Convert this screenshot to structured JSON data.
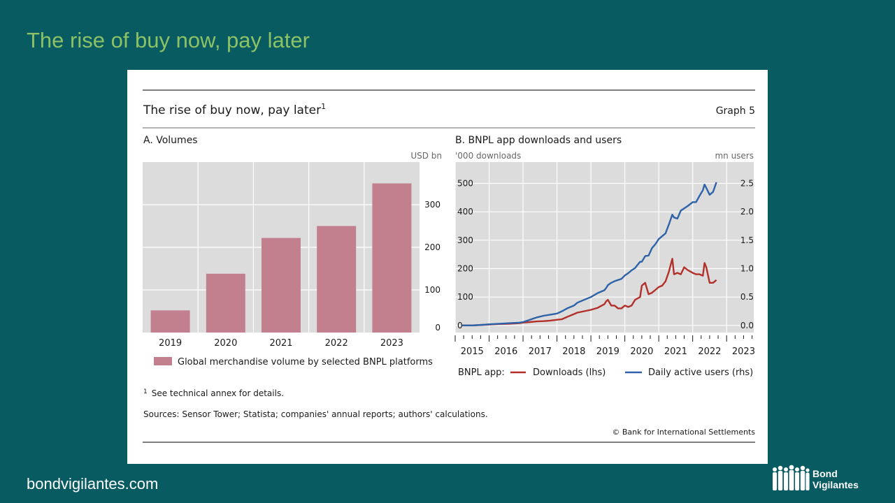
{
  "slide": {
    "title": "The rise of buy now, pay later",
    "footer_url": "bondvigilantes.com",
    "brand": {
      "line1": "Bond",
      "line2": "Vigilantes"
    }
  },
  "figure": {
    "title": "The rise of buy now, pay later",
    "title_superscript": "1",
    "graph_label": "Graph 5",
    "footnote_marker": "1",
    "footnote": "See technical annex for details.",
    "sources": "Sources: Sensor Tower; Statista; companies' annual reports; authors' calculations.",
    "copyright": "© Bank for International Settlements"
  },
  "chart_data": [
    {
      "type": "bar",
      "panel_title": "A. Volumes",
      "unit_label": "USD bn",
      "categories": [
        "2019",
        "2020",
        "2021",
        "2022",
        "2023"
      ],
      "series": [
        {
          "name": "Global merchandise volume by selected BNPL platforms",
          "values": [
            52,
            138,
            222,
            250,
            350
          ],
          "color": "#c2808f"
        }
      ],
      "ylim": [
        0,
        400
      ],
      "yticks": [
        "0",
        "100",
        "200",
        "300"
      ],
      "axis_side": "right",
      "grid": true,
      "legend_position": "bottom"
    },
    {
      "type": "line",
      "panel_title": "B. BNPL app downloads and users",
      "left_unit_label": "'000 downloads",
      "right_unit_label": "mn users",
      "xlim": [
        2015,
        2023.8
      ],
      "xticks": [
        "2015",
        "2016",
        "2017",
        "2018",
        "2019",
        "2020",
        "2021",
        "2022",
        "2023"
      ],
      "y_left_lim": [
        -25,
        575
      ],
      "y_left_ticks": [
        "0",
        "100",
        "200",
        "300",
        "400",
        "500"
      ],
      "y_right_lim": [
        -0.125,
        2.875
      ],
      "y_right_ticks": [
        "0.0",
        "0.5",
        "1.0",
        "1.5",
        "2.0",
        "2.5"
      ],
      "legend_prefix": "BNPL app:",
      "grid": true,
      "legend_position": "bottom",
      "series": [
        {
          "name": "Downloads (lhs)",
          "axis": "left",
          "color": "#b22f2a",
          "x": [
            2015.2,
            2015.5,
            2015.8,
            2016.0,
            2016.3,
            2016.6,
            2016.9,
            2017.0,
            2017.2,
            2017.4,
            2017.6,
            2017.8,
            2018.0,
            2018.15,
            2018.3,
            2018.5,
            2018.6,
            2018.8,
            2019.0,
            2019.2,
            2019.4,
            2019.45,
            2019.5,
            2019.6,
            2019.7,
            2019.8,
            2019.9,
            2020.0,
            2020.1,
            2020.2,
            2020.3,
            2020.45,
            2020.5,
            2020.6,
            2020.7,
            2020.8,
            2020.9,
            2021.0,
            2021.1,
            2021.2,
            2021.3,
            2021.4,
            2021.45,
            2021.55,
            2021.65,
            2021.75,
            2021.85,
            2022.0,
            2022.1,
            2022.2,
            2022.3,
            2022.35,
            2022.4,
            2022.5,
            2022.6,
            2022.7
          ],
          "y": [
            0,
            0,
            2,
            3,
            5,
            6,
            8,
            10,
            12,
            14,
            15,
            17,
            20,
            22,
            30,
            40,
            45,
            50,
            55,
            62,
            75,
            85,
            90,
            70,
            70,
            60,
            60,
            70,
            65,
            70,
            90,
            100,
            140,
            150,
            110,
            115,
            125,
            135,
            140,
            155,
            190,
            235,
            180,
            185,
            180,
            205,
            195,
            185,
            180,
            180,
            175,
            220,
            205,
            150,
            150,
            160
          ]
        },
        {
          "name": "Daily active users (rhs)",
          "axis": "right",
          "color": "#2e62a8",
          "x": [
            2015.2,
            2015.5,
            2015.8,
            2016.0,
            2016.3,
            2016.6,
            2016.9,
            2017.0,
            2017.2,
            2017.4,
            2017.6,
            2017.8,
            2018.0,
            2018.15,
            2018.3,
            2018.5,
            2018.6,
            2018.8,
            2019.0,
            2019.2,
            2019.4,
            2019.45,
            2019.5,
            2019.6,
            2019.7,
            2019.8,
            2019.9,
            2020.0,
            2020.1,
            2020.2,
            2020.3,
            2020.45,
            2020.5,
            2020.6,
            2020.7,
            2020.8,
            2020.9,
            2021.0,
            2021.1,
            2021.2,
            2021.3,
            2021.4,
            2021.45,
            2021.55,
            2021.65,
            2021.75,
            2021.85,
            2022.0,
            2022.1,
            2022.2,
            2022.3,
            2022.35,
            2022.4,
            2022.5,
            2022.6,
            2022.7
          ],
          "y": [
            0,
            0,
            0.01,
            0.02,
            0.03,
            0.04,
            0.05,
            0.06,
            0.1,
            0.14,
            0.17,
            0.19,
            0.21,
            0.25,
            0.3,
            0.35,
            0.4,
            0.45,
            0.5,
            0.57,
            0.62,
            0.66,
            0.71,
            0.75,
            0.78,
            0.8,
            0.82,
            0.88,
            0.92,
            0.97,
            1.01,
            1.12,
            1.12,
            1.22,
            1.23,
            1.36,
            1.43,
            1.52,
            1.57,
            1.62,
            1.78,
            1.95,
            1.9,
            1.88,
            2.02,
            2.06,
            2.1,
            2.17,
            2.17,
            2.28,
            2.38,
            2.48,
            2.42,
            2.3,
            2.35,
            2.52
          ]
        }
      ]
    }
  ]
}
